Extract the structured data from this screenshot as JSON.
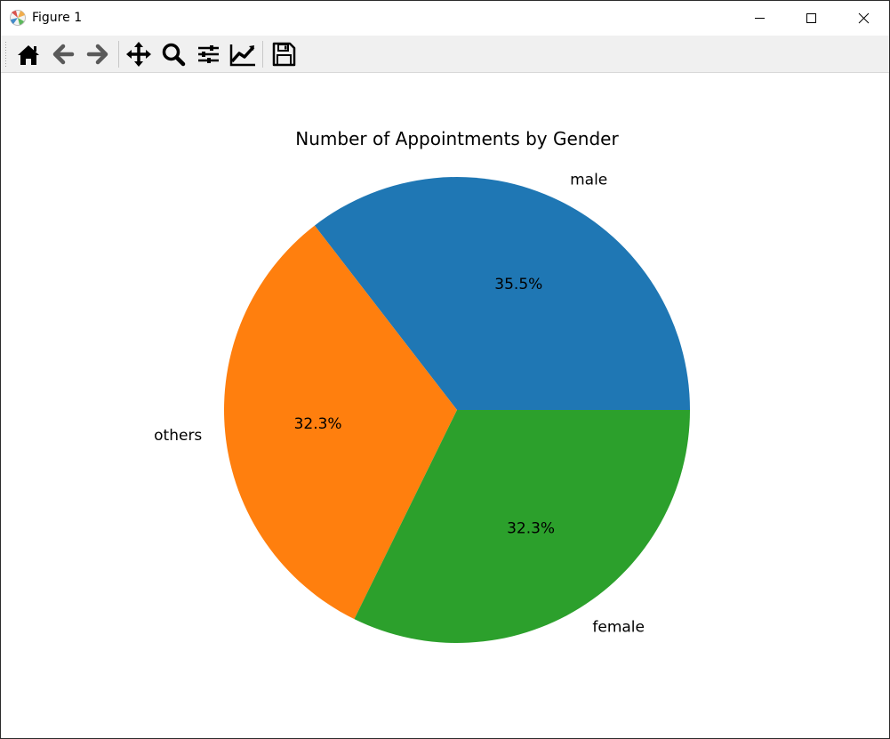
{
  "window": {
    "title": "Figure 1",
    "minimize_icon": "minimize-icon",
    "maximize_icon": "maximize-icon",
    "close_icon": "close-icon"
  },
  "toolbar": {
    "buttons": [
      {
        "name": "home-button",
        "icon": "home-icon"
      },
      {
        "name": "back-button",
        "icon": "arrow-left-icon"
      },
      {
        "name": "forward-button",
        "icon": "arrow-right-icon"
      },
      {
        "name": "pan-button",
        "icon": "move-icon"
      },
      {
        "name": "zoom-button",
        "icon": "magnifier-icon"
      },
      {
        "name": "subplots-button",
        "icon": "sliders-icon"
      },
      {
        "name": "edit-axes-button",
        "icon": "line-chart-icon"
      },
      {
        "name": "save-button",
        "icon": "floppy-disk-icon"
      }
    ]
  },
  "chart_data": {
    "type": "pie",
    "title": "Number of Appointments by Gender",
    "labels": [
      "male",
      "others",
      "female"
    ],
    "values": [
      35.5,
      32.3,
      32.3
    ],
    "autopct_labels": [
      "35.5%",
      "32.3%",
      "32.3%"
    ],
    "colors": [
      "#1f77b4",
      "#ff7f0e",
      "#2ca02c"
    ],
    "start_angle_deg": 0,
    "direction": "counterclockwise",
    "legend": "none"
  }
}
